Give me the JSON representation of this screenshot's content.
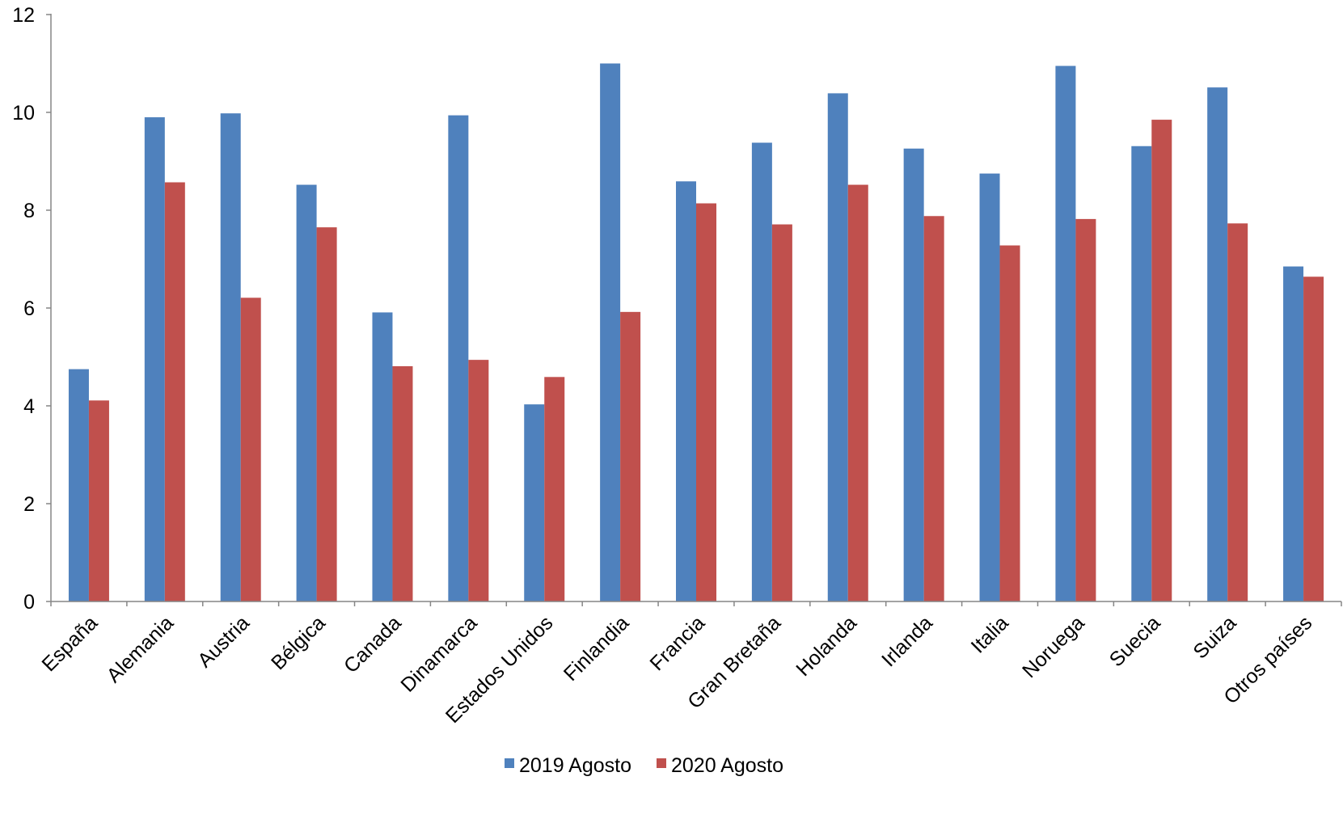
{
  "chart_data": {
    "type": "bar",
    "title": "",
    "xlabel": "",
    "ylabel": "",
    "ylim": [
      0,
      12
    ],
    "yticks": [
      0,
      2,
      4,
      6,
      8,
      10,
      12
    ],
    "grid": false,
    "legend_position": "bottom",
    "categories": [
      "España",
      "Alemania",
      "Austria",
      "Bélgica",
      "Canada",
      "Dinamarca",
      "Estados Unidos",
      "Finlandia",
      "Francia",
      "Gran Bretaña",
      "Holanda",
      "Irlanda",
      "Italia",
      "Noruega",
      "Suecia",
      "Suiza",
      "Otros países"
    ],
    "series": [
      {
        "name": "2019 Agosto",
        "color": "#4F81BD",
        "values": [
          4.75,
          9.9,
          9.98,
          8.52,
          5.91,
          9.94,
          4.03,
          11.0,
          8.59,
          9.38,
          10.39,
          9.26,
          8.75,
          10.95,
          9.31,
          10.51,
          6.85
        ]
      },
      {
        "name": "2020 Agosto",
        "color": "#C0504D",
        "values": [
          4.11,
          8.57,
          6.21,
          7.65,
          4.81,
          4.94,
          4.59,
          5.92,
          8.14,
          7.71,
          8.52,
          7.88,
          7.28,
          7.82,
          9.85,
          7.73,
          6.64
        ]
      }
    ]
  }
}
